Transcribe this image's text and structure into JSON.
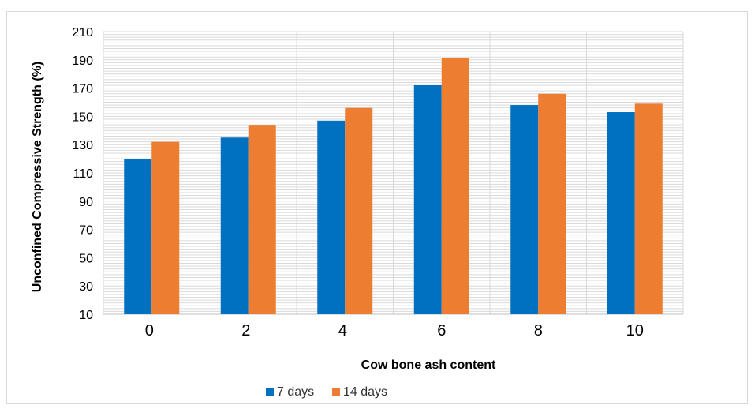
{
  "chart_data": {
    "type": "bar",
    "categories": [
      "0",
      "2",
      "4",
      "6",
      "8",
      "10"
    ],
    "series": [
      {
        "name": "7 days",
        "values": [
          120,
          135,
          147,
          172,
          158,
          153
        ],
        "color": "#0070C0"
      },
      {
        "name": "14 days",
        "values": [
          132,
          144,
          156,
          191,
          166,
          159
        ],
        "color": "#ED7D31"
      }
    ],
    "title": "",
    "xlabel": "Cow bone ash content",
    "ylabel": "Unconfined Compressive Strength (%)",
    "ylim": [
      10,
      210
    ],
    "yticks": [
      10,
      30,
      50,
      70,
      90,
      110,
      130,
      150,
      170,
      190,
      210
    ],
    "grid": true,
    "legend_position": "bottom-left"
  }
}
